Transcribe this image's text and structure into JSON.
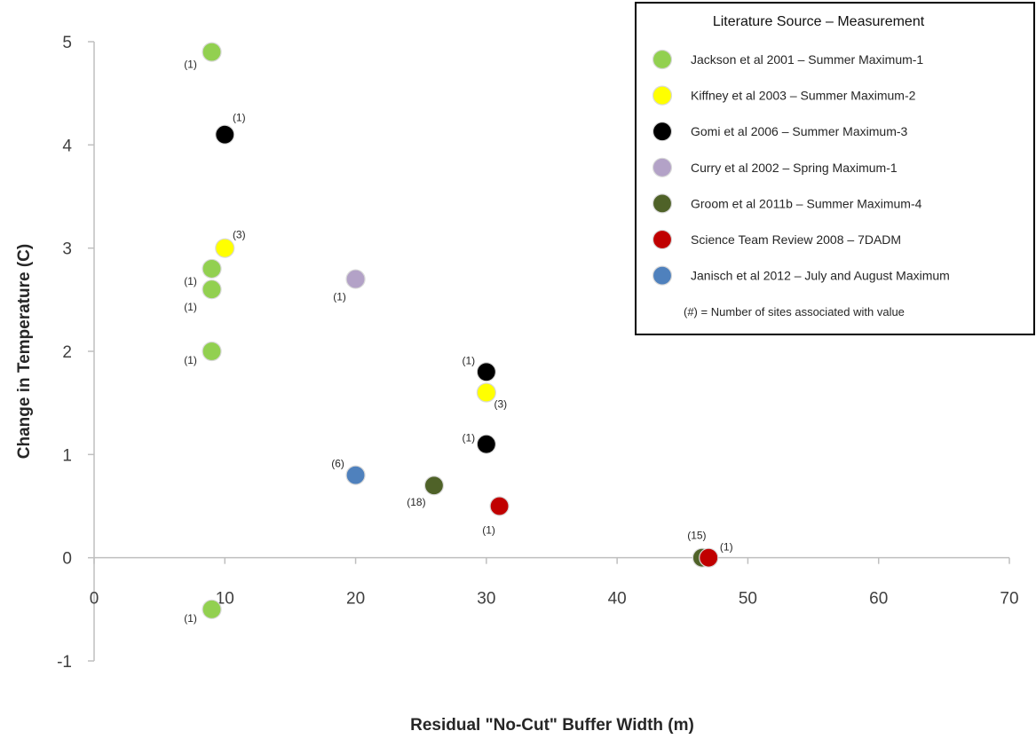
{
  "chart_data": {
    "type": "scatter",
    "xlabel": "Residual \"No-Cut\" Buffer Width (m)",
    "ylabel": "Change in Temperature (C)",
    "xlim": [
      0,
      70
    ],
    "ylim": [
      -1,
      5
    ],
    "x_ticks": [
      "0",
      "10",
      "20",
      "30",
      "40",
      "50",
      "60",
      "70"
    ],
    "y_ticks": [
      "-1",
      "0",
      "1",
      "2",
      "3",
      "4",
      "5"
    ],
    "grid": false,
    "legend": {
      "placement": "top-right",
      "title": "Literature Source – Measurement",
      "note": "(#) = Number of sites associated with value"
    },
    "series": [
      {
        "name": "Jackson et al 2001 – Summer Maximum-1",
        "color": "#92d050",
        "points": [
          {
            "x": 9,
            "y": 4.9,
            "label": "(1)"
          },
          {
            "x": 9,
            "y": 2.8,
            "label": "(1)"
          },
          {
            "x": 9,
            "y": 2.6,
            "label": "(1)"
          },
          {
            "x": 9,
            "y": 2.0,
            "label": "(1)"
          },
          {
            "x": 9,
            "y": -0.5,
            "label": "(1)"
          }
        ]
      },
      {
        "name": "Kiffney et al 2003  – Summer Maximum-2",
        "color": "#ffff00",
        "points": [
          {
            "x": 10,
            "y": 3.0,
            "label": "(3)"
          },
          {
            "x": 30,
            "y": 1.6,
            "label": "(3)"
          }
        ]
      },
      {
        "name": "Gomi et al 2006  –  Summer Maximum-3",
        "color": "#000000",
        "points": [
          {
            "x": 10,
            "y": 4.1,
            "label": "(1)"
          },
          {
            "x": 30,
            "y": 1.8,
            "label": "(1)"
          },
          {
            "x": 30,
            "y": 1.1,
            "label": "(1)"
          }
        ]
      },
      {
        "name": "Curry et al 2002 – Spring Maximum-1",
        "color": "#b3a2c7",
        "points": [
          {
            "x": 20,
            "y": 2.7,
            "label": "(1)"
          }
        ]
      },
      {
        "name": "Groom et al 2011b  – Summer Maximum-4",
        "color": "#4f6228",
        "points": [
          {
            "x": 26,
            "y": 0.7,
            "label": "(18)"
          },
          {
            "x": 46.5,
            "y": 0.0,
            "label": "(15)"
          }
        ]
      },
      {
        "name": "Science Team Review 2008 – 7DADM",
        "color": "#c00000",
        "points": [
          {
            "x": 31,
            "y": 0.5,
            "label": "(1)"
          },
          {
            "x": 47,
            "y": 0.0,
            "label": "(1)"
          }
        ]
      },
      {
        "name": "Janisch et al 2012 – July and August Maximum",
        "color": "#4f81bd",
        "points": [
          {
            "x": 20,
            "y": 0.8,
            "label": "(6)"
          }
        ]
      }
    ]
  }
}
